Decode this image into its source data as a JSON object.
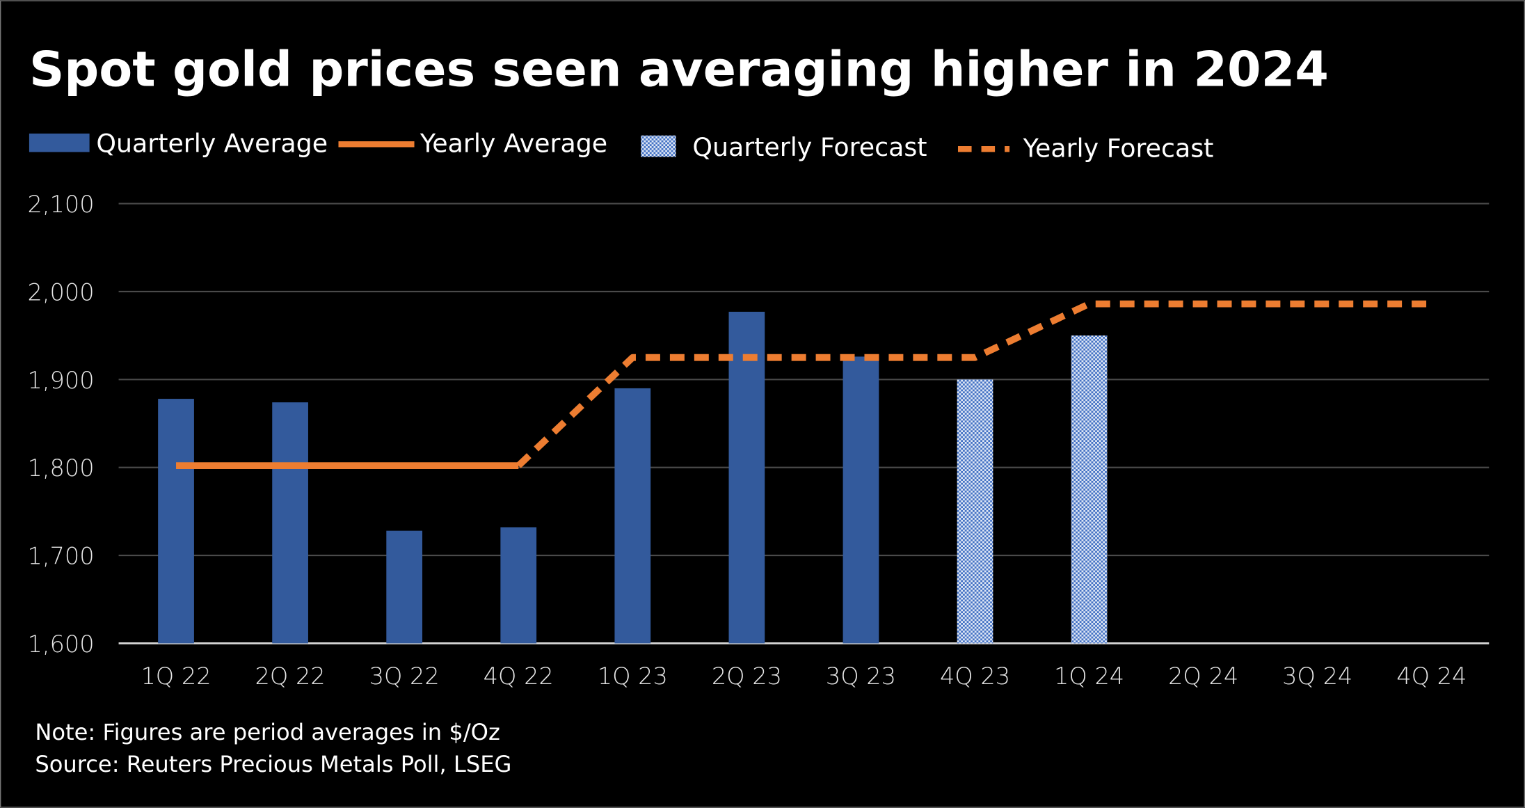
{
  "chart_data": {
    "type": "bar",
    "title": "Spot gold prices seen averaging higher in 2024",
    "categories": [
      "1Q 22",
      "2Q 22",
      "3Q 22",
      "4Q 22",
      "1Q 23",
      "2Q 23",
      "3Q 23",
      "4Q 23",
      "1Q 24",
      "2Q 24",
      "3Q 24",
      "4Q 24"
    ],
    "ylim": [
      1600,
      2100
    ],
    "yticks": [
      "1,600",
      "1,700",
      "1,800",
      "1,900",
      "2,000",
      "2,100"
    ],
    "ytick_values": [
      1600,
      1700,
      1800,
      1900,
      2000,
      2100
    ],
    "grid": true,
    "legend_placement": "top",
    "legend": [
      "Quarterly Average",
      "Yearly Average",
      "Quarterly Forecast",
      "Yearly Forecast"
    ],
    "series": [
      {
        "name": "Quarterly Average",
        "type": "bar",
        "values": [
          1878,
          1874,
          1728,
          1732,
          1890,
          1977,
          1926,
          null,
          null,
          null,
          null,
          null
        ],
        "color": "#335a9c"
      },
      {
        "name": "Quarterly Forecast",
        "type": "bar",
        "pattern": "checker",
        "values": [
          null,
          null,
          null,
          null,
          null,
          null,
          null,
          1900,
          1950,
          null,
          null,
          null
        ],
        "color": "#4472c4"
      },
      {
        "name": "Yearly Average",
        "type": "line",
        "values": [
          1802,
          1802,
          1802,
          1802,
          null,
          null,
          null,
          null,
          null,
          null,
          null,
          null
        ],
        "color": "#ed7d31"
      },
      {
        "name": "Yearly Forecast",
        "type": "line",
        "dashed": true,
        "values": [
          null,
          null,
          null,
          1802,
          1925,
          1925,
          1925,
          1925,
          1986,
          1986,
          1986,
          1986
        ],
        "color": "#ed7d31"
      }
    ],
    "notes": [
      "Note: Figures are period averages in $/Oz",
      "Source: Reuters Precious Metals Poll, LSEG"
    ]
  }
}
